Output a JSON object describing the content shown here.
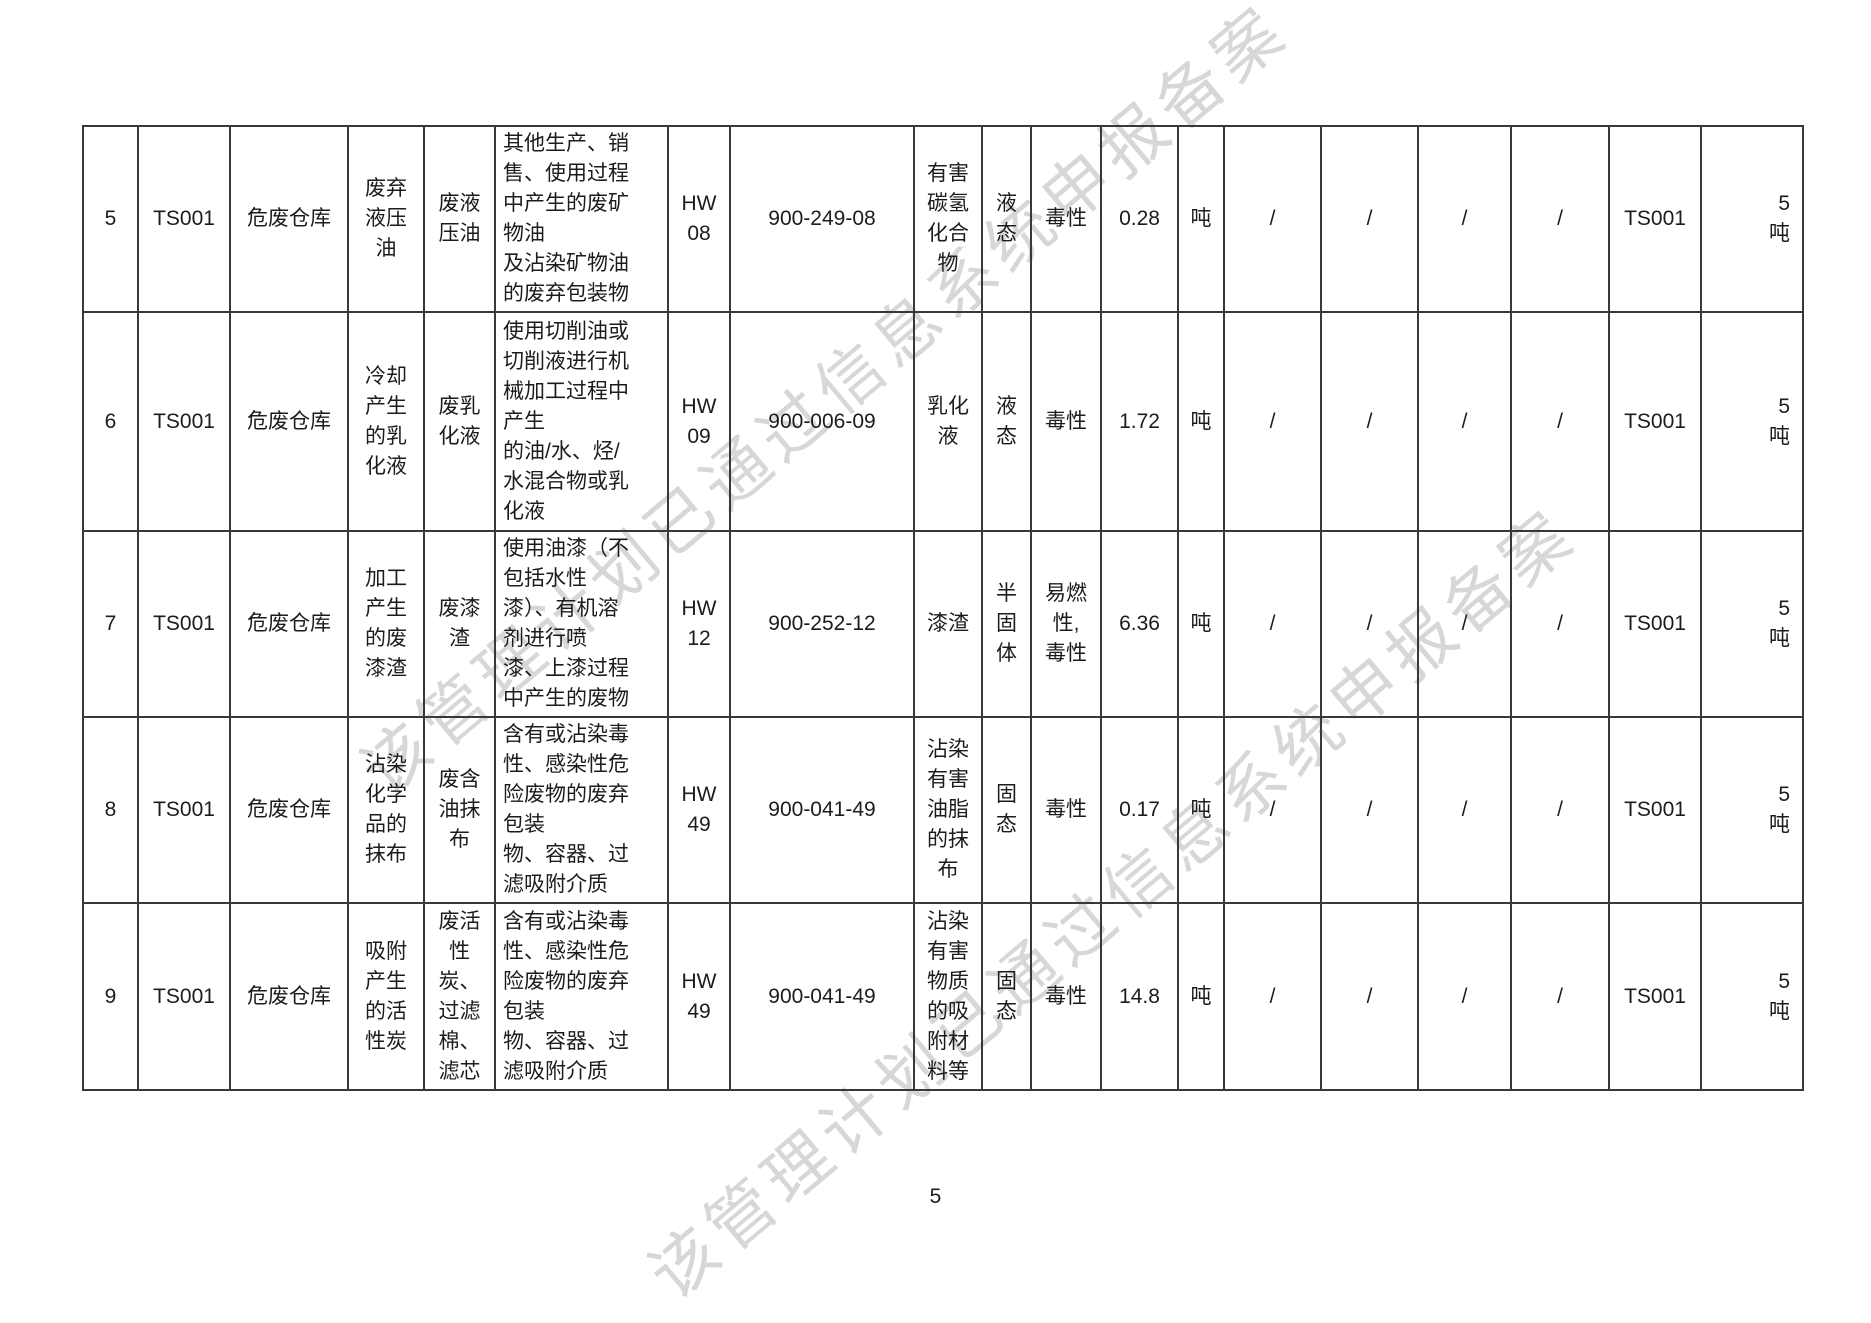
{
  "page": {
    "number": "5",
    "watermark_text": "该管理计划已通过信息系统申报备案"
  },
  "table": {
    "rows": [
      {
        "no": "5",
        "unit_code": "TS001",
        "location": "危废仓库",
        "waste_name": "废弃\n液压\n油",
        "waste_short_name": "废液\n压油",
        "source_description": "其他生产、销\n售、使用过程\n中产生的废矿\n物油\n及沾染矿物油\n的废弃包装物",
        "hw_category": "HW\n08",
        "waste_code": "900-249-08",
        "harmful_component": "有害\n碳氢\n化合\n物",
        "physical_state": "液\n态",
        "hazard_property": "毒性",
        "amount": "0.28",
        "unit": "吨",
        "f14": "/",
        "f15": "/",
        "f16": "/",
        "f17": "/",
        "storage_code": "TS001",
        "storage_capacity": "5\n吨"
      },
      {
        "no": "6",
        "unit_code": "TS001",
        "location": "危废仓库",
        "waste_name": "冷却\n产生\n的乳\n化液",
        "waste_short_name": "废乳\n化液",
        "source_description": "使用切削油或\n切削液进行机\n械加工过程中\n产生\n的油/水、烃/\n水混合物或乳\n化液",
        "hw_category": "HW\n09",
        "waste_code": "900-006-09",
        "harmful_component": "乳化\n液",
        "physical_state": "液\n态",
        "hazard_property": "毒性",
        "amount": "1.72",
        "unit": "吨",
        "f14": "/",
        "f15": "/",
        "f16": "/",
        "f17": "/",
        "storage_code": "TS001",
        "storage_capacity": "5\n吨"
      },
      {
        "no": "7",
        "unit_code": "TS001",
        "location": "危废仓库",
        "waste_name": "加工\n产生\n的废\n漆渣",
        "waste_short_name": "废漆\n渣",
        "source_description": "使用油漆（不\n包括水性\n漆）、有机溶\n剂进行喷\n漆、上漆过程\n中产生的废物",
        "hw_category": "HW\n12",
        "waste_code": "900-252-12",
        "harmful_component": "漆渣",
        "physical_state": "半\n固\n体",
        "hazard_property": "易燃\n性,\n毒性",
        "amount": "6.36",
        "unit": "吨",
        "f14": "/",
        "f15": "/",
        "f16": "/",
        "f17": "/",
        "storage_code": "TS001",
        "storage_capacity": "5\n吨"
      },
      {
        "no": "8",
        "unit_code": "TS001",
        "location": "危废仓库",
        "waste_name": "沾染\n化学\n品的\n抹布",
        "waste_short_name": "废含\n油抹\n布",
        "source_description": "含有或沾染毒\n性、感染性危\n险废物的废弃\n包装\n物、容器、过\n滤吸附介质",
        "hw_category": "HW\n49",
        "waste_code": "900-041-49",
        "harmful_component": "沾染\n有害\n油脂\n的抹\n布",
        "physical_state": "固\n态",
        "hazard_property": "毒性",
        "amount": "0.17",
        "unit": "吨",
        "f14": "/",
        "f15": "/",
        "f16": "/",
        "f17": "/",
        "storage_code": "TS001",
        "storage_capacity": "5\n吨"
      },
      {
        "no": "9",
        "unit_code": "TS001",
        "location": "危废仓库",
        "waste_name": "吸附\n产生\n的活\n性炭",
        "waste_short_name": "废活\n性\n炭、\n过滤\n棉、\n滤芯",
        "source_description": "含有或沾染毒\n性、感染性危\n险废物的废弃\n包装\n物、容器、过\n滤吸附介质",
        "hw_category": "HW\n49",
        "waste_code": "900-041-49",
        "harmful_component": "沾染\n有害\n物质\n的吸\n附材\n料等",
        "physical_state": "固\n态",
        "hazard_property": "毒性",
        "amount": "14.8",
        "unit": "吨",
        "f14": "/",
        "f15": "/",
        "f16": "/",
        "f17": "/",
        "storage_code": "TS001",
        "storage_capacity": "5\n吨"
      }
    ]
  }
}
